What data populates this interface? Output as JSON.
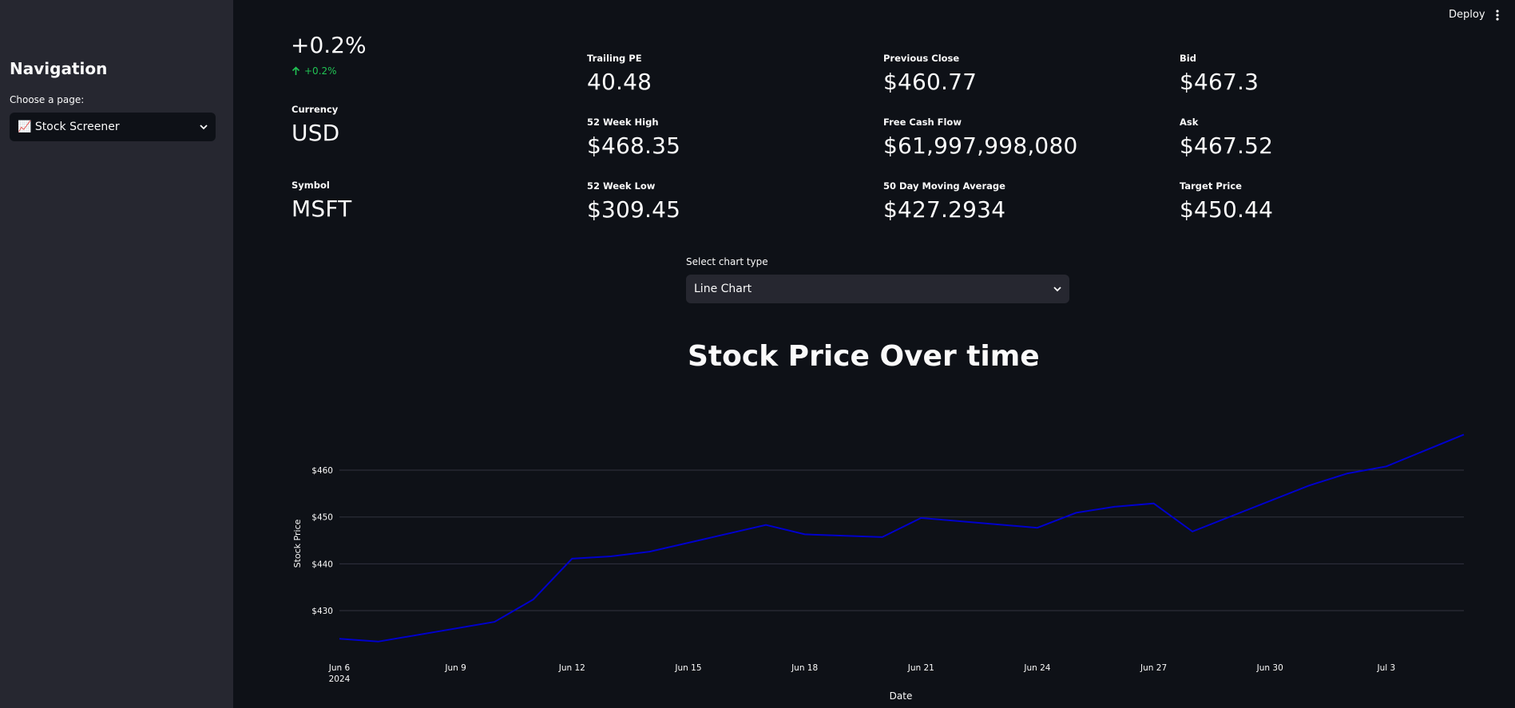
{
  "header": {
    "deploy_label": "Deploy"
  },
  "sidebar": {
    "title": "Navigation",
    "choose_label": "Choose a page:",
    "selected_page": "📈 Stock Screener"
  },
  "metrics": {
    "change_value": "+0.2%",
    "change_delta": "+0.2%",
    "currency_label": "Currency",
    "currency_value": "USD",
    "symbol_label": "Symbol",
    "symbol_value": "MSFT",
    "trailing_pe_label": "Trailing PE",
    "trailing_pe_value": "40.48",
    "high52_label": "52 Week High",
    "high52_value": "$468.35",
    "low52_label": "52 Week Low",
    "low52_value": "$309.45",
    "prev_close_label": "Previous Close",
    "prev_close_value": "$460.77",
    "fcf_label": "Free Cash Flow",
    "fcf_value": "$61,997,998,080",
    "ma50_label": "50 Day Moving Average",
    "ma50_value": "$427.2934",
    "bid_label": "Bid",
    "bid_value": "$467.3",
    "ask_label": "Ask",
    "ask_value": "$467.52",
    "target_label": "Target Price",
    "target_value": "$450.44"
  },
  "chart_controls": {
    "label": "Select chart type",
    "selected": "Line Chart"
  },
  "colors": {
    "line": "#0000cc",
    "delta_up": "#21c354"
  },
  "chart_data": {
    "type": "line",
    "title": "Stock Price Over time",
    "xlabel": "Date",
    "ylabel": "Stock Price",
    "ylim": [
      422,
      467.5
    ],
    "yticks": [
      430,
      440,
      450,
      460
    ],
    "ytick_labels": [
      "$430",
      "$440",
      "$450",
      "$460"
    ],
    "xlim": [
      "2024-06-06",
      "2024-07-05"
    ],
    "xticks": [
      "2024-06-06",
      "2024-06-09",
      "2024-06-12",
      "2024-06-15",
      "2024-06-18",
      "2024-06-21",
      "2024-06-24",
      "2024-06-27",
      "2024-06-30",
      "2024-07-03"
    ],
    "xtick_labels": [
      "Jun 6\n2024",
      "Jun 9",
      "Jun 12",
      "Jun 15",
      "Jun 18",
      "Jun 21",
      "Jun 24",
      "Jun 27",
      "Jun 30",
      "Jul 3"
    ],
    "grid": true,
    "series": [
      {
        "x": [
          "2024-06-06",
          "2024-06-07",
          "2024-06-10",
          "2024-06-11",
          "2024-06-12",
          "2024-06-13",
          "2024-06-14",
          "2024-06-17",
          "2024-06-18",
          "2024-06-20",
          "2024-06-21",
          "2024-06-24",
          "2024-06-25",
          "2024-06-26",
          "2024-06-27",
          "2024-06-28",
          "2024-07-01",
          "2024-07-02",
          "2024-07-03",
          "2024-07-05"
        ],
        "values": [
          424.0,
          423.4,
          427.6,
          432.4,
          441.1,
          441.6,
          442.6,
          448.3,
          446.3,
          445.7,
          449.8,
          447.7,
          450.9,
          452.2,
          452.9,
          446.9,
          456.7,
          459.3,
          460.8,
          467.6
        ]
      }
    ]
  }
}
